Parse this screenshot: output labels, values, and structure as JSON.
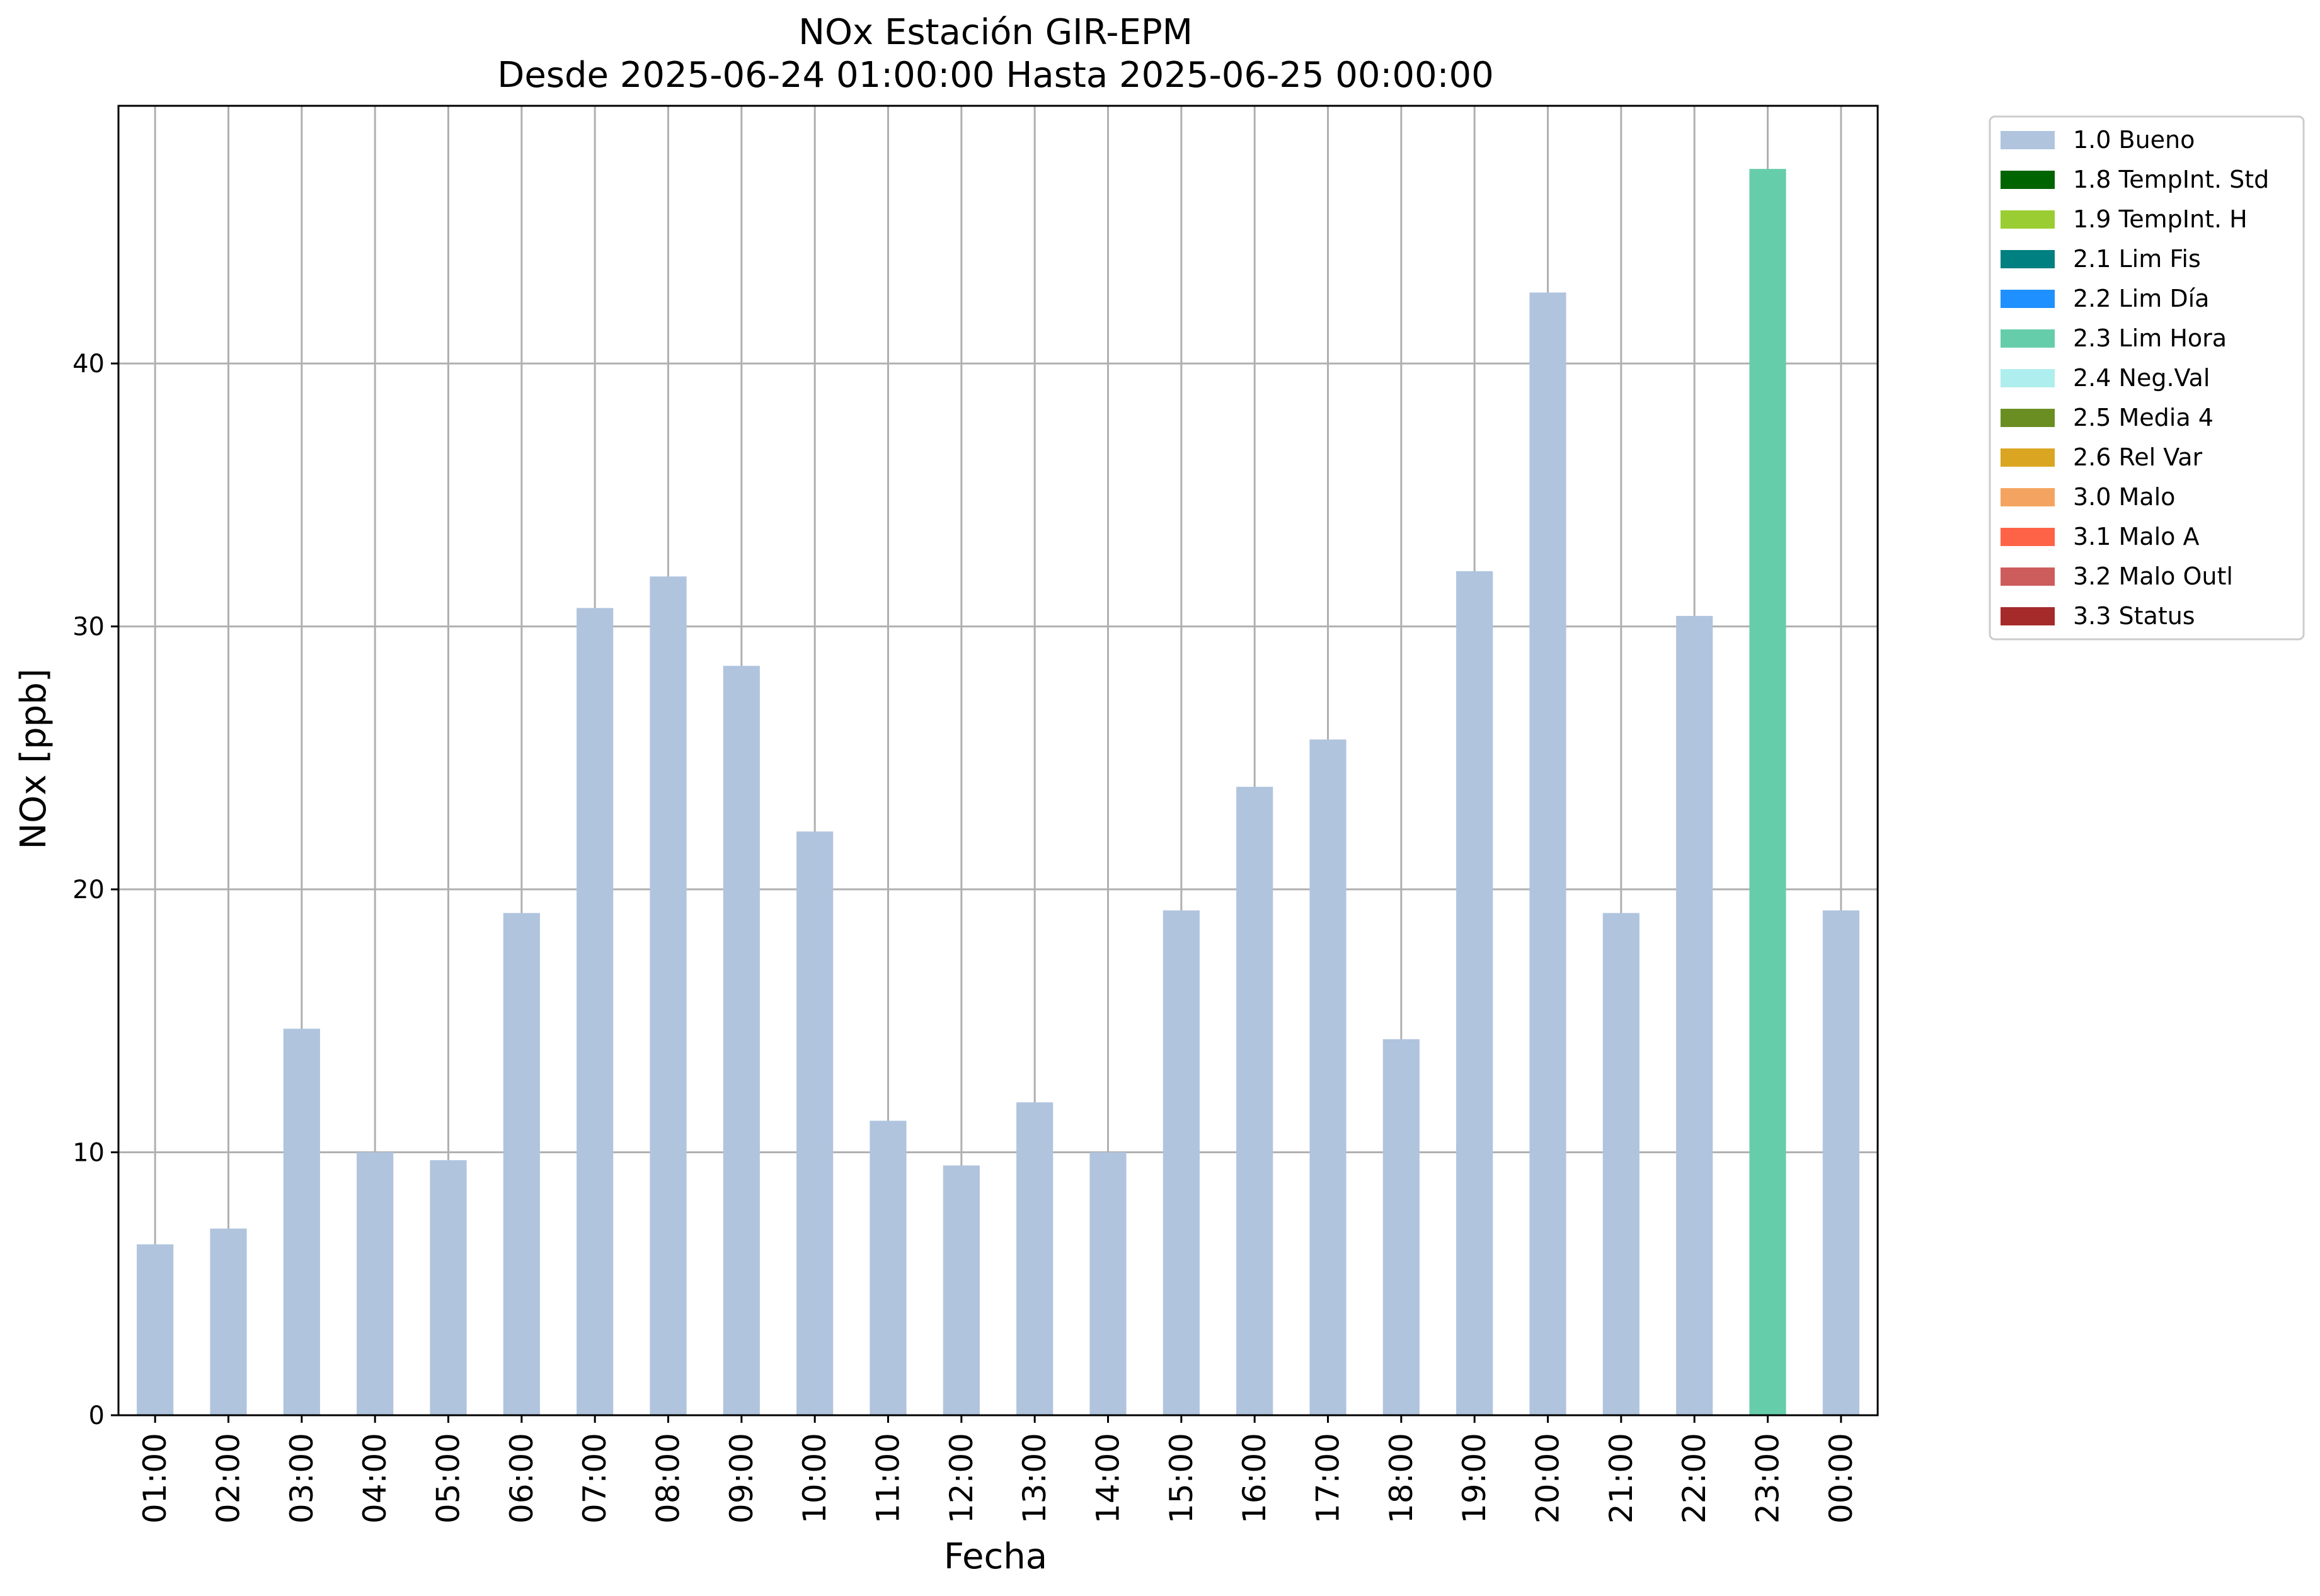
{
  "chart_data": {
    "type": "bar",
    "title": "NOx Estación GIR-EPM",
    "subtitle": "Desde 2025-06-24 01:00:00 Hasta 2025-06-25 00:00:00",
    "xlabel": "Fecha",
    "ylabel": "NOx [ppb]",
    "ylim": [
      0,
      49.8
    ],
    "yticks": [
      "0",
      "10",
      "20",
      "30",
      "40"
    ],
    "grid": true,
    "legend_position": "outside-top-right",
    "categories": [
      "01:00",
      "02:00",
      "03:00",
      "04:00",
      "05:00",
      "06:00",
      "07:00",
      "08:00",
      "09:00",
      "10:00",
      "11:00",
      "12:00",
      "13:00",
      "14:00",
      "15:00",
      "16:00",
      "17:00",
      "18:00",
      "19:00",
      "20:00",
      "21:00",
      "22:00",
      "23:00",
      "00:00"
    ],
    "values": [
      6.5,
      7.1,
      14.7,
      10.0,
      9.7,
      19.1,
      30.7,
      31.9,
      28.5,
      22.2,
      11.2,
      9.5,
      11.9,
      10.0,
      19.2,
      23.9,
      25.7,
      14.3,
      32.1,
      42.7,
      19.1,
      30.4,
      47.4,
      19.2
    ],
    "bar_flags": [
      "1.0 Bueno",
      "1.0 Bueno",
      "1.0 Bueno",
      "1.0 Bueno",
      "1.0 Bueno",
      "1.0 Bueno",
      "1.0 Bueno",
      "1.0 Bueno",
      "1.0 Bueno",
      "1.0 Bueno",
      "1.0 Bueno",
      "1.0 Bueno",
      "1.0 Bueno",
      "1.0 Bueno",
      "1.0 Bueno",
      "1.0 Bueno",
      "1.0 Bueno",
      "1.0 Bueno",
      "1.0 Bueno",
      "1.0 Bueno",
      "1.0 Bueno",
      "1.0 Bueno",
      "2.3 Lim Hora",
      "1.0 Bueno"
    ],
    "legend": [
      {
        "label": "1.0 Bueno",
        "color": "#b0c4de"
      },
      {
        "label": "1.8 TempInt. Std",
        "color": "#006400"
      },
      {
        "label": "1.9 TempInt. H",
        "color": "#9acd32"
      },
      {
        "label": "2.1 Lim Fis",
        "color": "#008080"
      },
      {
        "label": "2.2 Lim Día",
        "color": "#1e90ff"
      },
      {
        "label": "2.3 Lim Hora",
        "color": "#66cdaa"
      },
      {
        "label": "2.4 Neg.Val",
        "color": "#afeeee"
      },
      {
        "label": "2.5 Media 4",
        "color": "#6b8e23"
      },
      {
        "label": "2.6 Rel Var",
        "color": "#daa520"
      },
      {
        "label": "3.0 Malo",
        "color": "#f4a460"
      },
      {
        "label": "3.1 Malo A",
        "color": "#ff6347"
      },
      {
        "label": "3.2 Malo Outl",
        "color": "#cd5c5c"
      },
      {
        "label": "3.3 Status",
        "color": "#a52a2a"
      }
    ]
  }
}
